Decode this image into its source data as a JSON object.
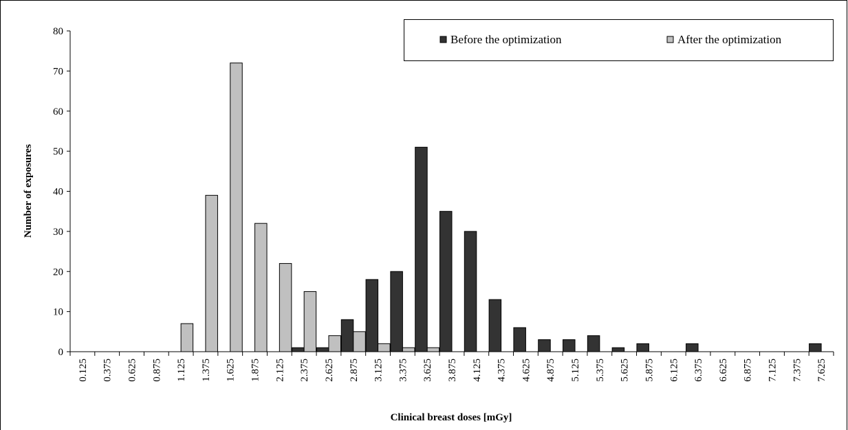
{
  "chart_data": {
    "type": "bar",
    "xlabel": "Clinical breast doses [mGy]",
    "ylabel": "Number of exposures",
    "categories": [
      "0.125",
      "0.375",
      "0.625",
      "0.875",
      "1.125",
      "1.375",
      "1.625",
      "1.875",
      "2.125",
      "2.375",
      "2.625",
      "2.875",
      "3.125",
      "3.375",
      "3.625",
      "3.875",
      "4.125",
      "4.375",
      "4.625",
      "4.875",
      "5.125",
      "5.375",
      "5.625",
      "5.875",
      "6.125",
      "6.375",
      "6.625",
      "6.875",
      "7.125",
      "7.375",
      "7.625"
    ],
    "series": [
      {
        "name": "Before the optimization",
        "color": "#333333",
        "values": [
          0,
          0,
          0,
          0,
          0,
          0,
          0,
          0,
          0,
          1,
          1,
          8,
          18,
          20,
          51,
          35,
          30,
          13,
          6,
          3,
          3,
          4,
          1,
          2,
          0,
          2,
          0,
          0,
          0,
          0,
          2
        ]
      },
      {
        "name": "After the optimization",
        "color": "#c0c0c0",
        "values": [
          0,
          0,
          0,
          0,
          7,
          39,
          72,
          32,
          22,
          15,
          4,
          5,
          2,
          1,
          1,
          0,
          0,
          0,
          0,
          0,
          0,
          0,
          0,
          0,
          0,
          0,
          0,
          0,
          0,
          0,
          0
        ]
      }
    ],
    "ylim": [
      0,
      80
    ],
    "yticks": [
      0,
      10,
      20,
      30,
      40,
      50,
      60,
      70,
      80
    ],
    "legend": "top-right"
  }
}
